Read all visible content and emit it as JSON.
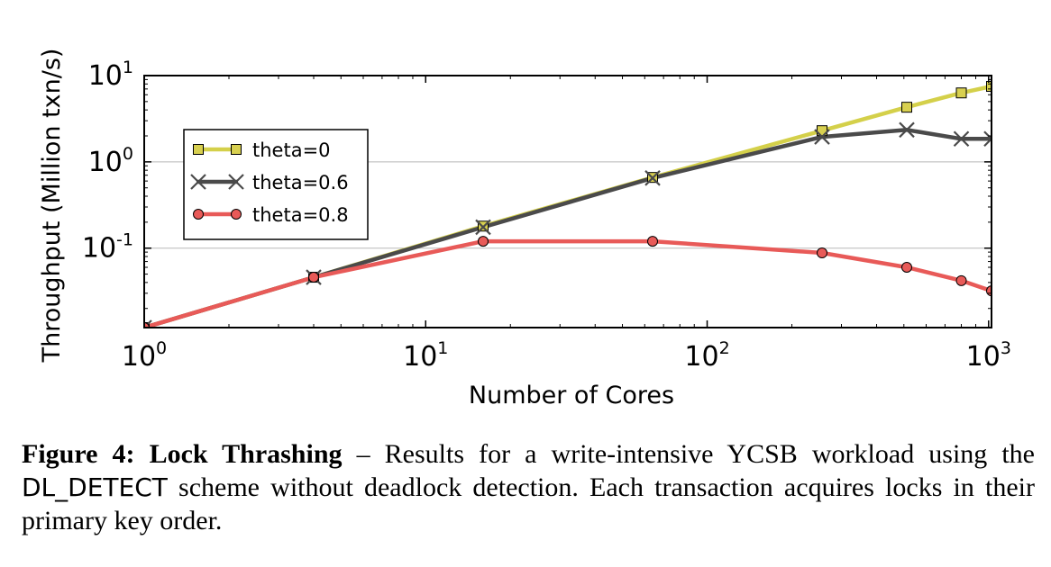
{
  "chart_data": {
    "type": "line",
    "xscale": "log",
    "yscale": "log",
    "xlabel": "Number of Cores",
    "ylabel": "Throughput (Million txn/s)",
    "xlim": [
      1,
      1024
    ],
    "ylim": [
      0.012,
      10
    ],
    "x_ticks": [
      {
        "value": 1,
        "base": "10",
        "exp": "0"
      },
      {
        "value": 10,
        "base": "10",
        "exp": "1"
      },
      {
        "value": 100,
        "base": "10",
        "exp": "2"
      },
      {
        "value": 1000,
        "base": "10",
        "exp": "3"
      }
    ],
    "y_ticks": [
      {
        "value": 10,
        "base": "10",
        "exp": "1"
      },
      {
        "value": 1,
        "base": "10",
        "exp": "0"
      },
      {
        "value": 0.1,
        "base": "10",
        "exp": "-1"
      }
    ],
    "grid": "horizontal",
    "legend_position": "upper-left",
    "series": [
      {
        "name": "theta=0",
        "marker": "square",
        "color": "#d4d04a",
        "marker_fill": "#d8d050",
        "x": [
          1,
          4,
          16,
          64,
          256,
          512,
          800,
          1024
        ],
        "y": [
          0.012,
          0.046,
          0.18,
          0.66,
          2.3,
          4.3,
          6.3,
          7.5
        ]
      },
      {
        "name": "theta=0.6",
        "marker": "x",
        "color": "#4a4a4a",
        "marker_fill": "#4a4a4a",
        "x": [
          1,
          4,
          16,
          64,
          256,
          512,
          800,
          1024
        ],
        "y": [
          0.012,
          0.046,
          0.175,
          0.65,
          1.95,
          2.35,
          1.85,
          1.85
        ]
      },
      {
        "name": "theta=0.8",
        "marker": "circle",
        "color": "#e85a58",
        "marker_fill": "#e85a58",
        "x": [
          1,
          4,
          16,
          64,
          256,
          512,
          800,
          1024
        ],
        "y": [
          0.012,
          0.046,
          0.12,
          0.12,
          0.088,
          0.06,
          0.042,
          0.032
        ]
      }
    ]
  },
  "caption": {
    "label": "Figure 4: Lock Thrashing",
    "text_before": " – Results for a write-intensive YCSB workload using the ",
    "code": "DL_DETECT",
    "text_after": " scheme without deadlock detection. Each transaction acquires locks in their primary key order."
  }
}
